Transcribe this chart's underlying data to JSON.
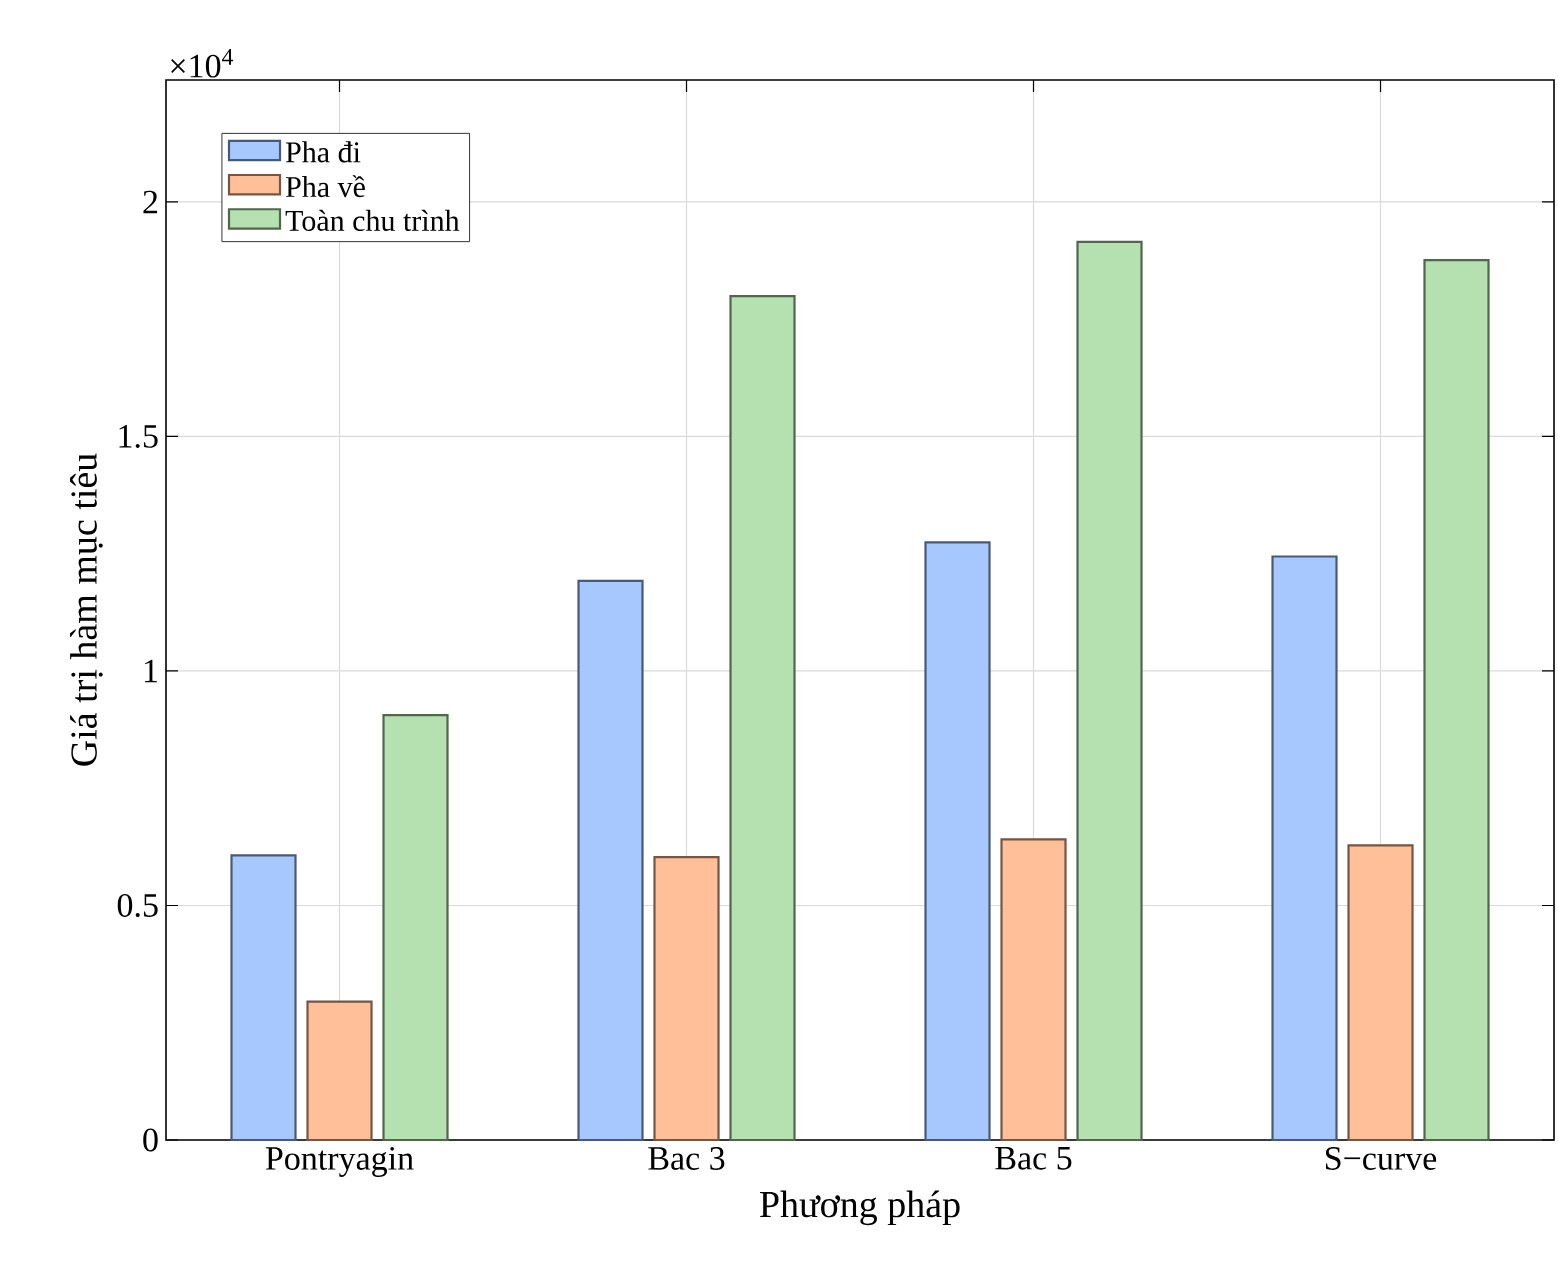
{
  "chart_data": {
    "type": "bar",
    "xlabel": "Phương pháp",
    "ylabel": "Giá trị hàm mục tiêu",
    "categories": [
      "Pontryagin",
      "Bac 3",
      "Bac 5",
      "S−curve"
    ],
    "series": [
      {
        "name": "Pha đi",
        "color": "#a6c8ff",
        "values": [
          0.607,
          1.192,
          1.274,
          1.244
        ]
      },
      {
        "name": "Pha về",
        "color": "#ffbf99",
        "values": [
          0.295,
          0.603,
          0.641,
          0.628
        ]
      },
      {
        "name": "Toàn chu trình",
        "color": "#b5e0b0",
        "values": [
          0.906,
          1.799,
          1.915,
          1.876
        ]
      }
    ],
    "ylim": [
      0,
      2.26
    ],
    "yticks": [
      0,
      0.5,
      1,
      1.5,
      2
    ],
    "annotations": [
      "×10$^{4}$"
    ],
    "grid": true,
    "legend": "top left"
  }
}
